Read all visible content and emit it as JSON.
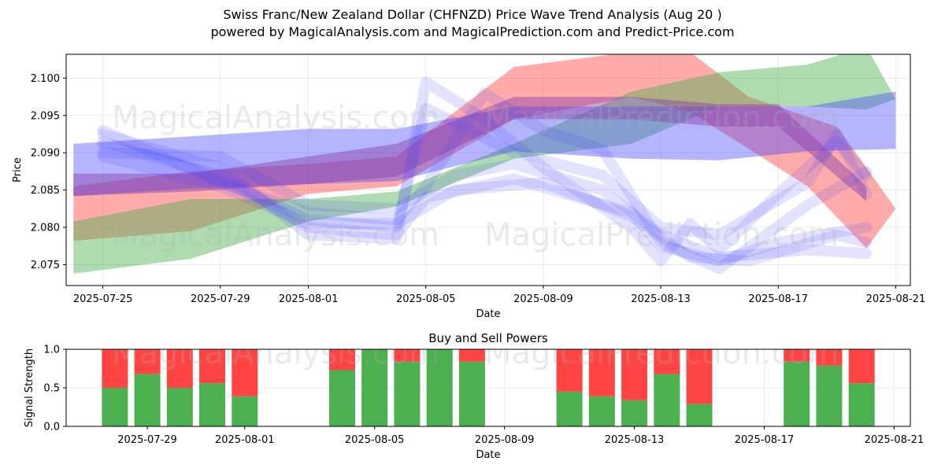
{
  "title_line1": "Swiss Franc/New Zealand Dollar (CHFNZD) Price Wave Trend Analysis (Aug 20 )",
  "title_line2": "powered by MagicalAnalysis.com and MagicalPrediction.com and Predict-Price.com",
  "watermarks": [
    "MagicalAnalysis.com",
    "MagicalPrediction.com"
  ],
  "colors": {
    "red": "#ff4444",
    "green": "#4caf50",
    "blue": "#4444ff",
    "grid": "#e6e6e6"
  },
  "chart_data": [
    {
      "type": "area",
      "name": "price-wave",
      "xlabel": "Date",
      "ylabel": "Price",
      "xlim": [
        "2025-07-23T18:00",
        "2025-08-21T12:00"
      ],
      "ylim": [
        2.0722,
        2.1032
      ],
      "x_ticks": [
        "2025-07-25",
        "2025-07-29",
        "2025-08-01",
        "2025-08-05",
        "2025-08-09",
        "2025-08-13",
        "2025-08-17",
        "2025-08-21"
      ],
      "y_ticks": [
        2.075,
        2.08,
        2.085,
        2.09,
        2.095,
        2.1
      ],
      "y_tick_labels": [
        "2.075",
        "2.080",
        "2.085",
        "2.090",
        "2.095",
        "2.100"
      ],
      "grid": true,
      "bands": [
        {
          "color": "#ff4444",
          "opacity": 0.45,
          "upper": [
            [
              "2025-07-24",
              2.0855
            ],
            [
              "2025-07-28",
              2.0875
            ],
            [
              "2025-08-01",
              2.0885
            ],
            [
              "2025-08-04",
              2.0895
            ],
            [
              "2025-08-08",
              2.1015
            ],
            [
              "2025-08-12",
              2.1035
            ],
            [
              "2025-08-14",
              2.1035
            ],
            [
              "2025-08-16",
              2.0975
            ],
            [
              "2025-08-19",
              2.0935
            ],
            [
              "2025-08-21",
              2.0825
            ]
          ],
          "lower": [
            [
              "2025-07-24",
              2.0782
            ],
            [
              "2025-07-28",
              2.0795
            ],
            [
              "2025-08-01",
              2.0845
            ],
            [
              "2025-08-04",
              2.0855
            ],
            [
              "2025-08-08",
              2.0945
            ],
            [
              "2025-08-12",
              2.0975
            ],
            [
              "2025-08-14",
              2.0955
            ],
            [
              "2025-08-16",
              2.0905
            ],
            [
              "2025-08-18",
              2.0855
            ],
            [
              "2025-08-20",
              2.0772
            ]
          ]
        },
        {
          "color": "#4caf50",
          "opacity": 0.45,
          "upper": [
            [
              "2025-07-24",
              2.0808
            ],
            [
              "2025-07-28",
              2.0838
            ],
            [
              "2025-08-01",
              2.0838
            ],
            [
              "2025-08-04",
              2.0848
            ],
            [
              "2025-08-08",
              2.0912
            ],
            [
              "2025-08-12",
              2.0982
            ],
            [
              "2025-08-15",
              2.1008
            ],
            [
              "2025-08-18",
              2.1018
            ],
            [
              "2025-08-20",
              2.1042
            ],
            [
              "2025-08-21",
              2.0972
            ]
          ],
          "lower": [
            [
              "2025-07-24",
              2.0738
            ],
            [
              "2025-07-28",
              2.0758
            ],
            [
              "2025-08-01",
              2.0808
            ],
            [
              "2025-08-04",
              2.0828
            ],
            [
              "2025-08-08",
              2.0892
            ],
            [
              "2025-08-12",
              2.0912
            ],
            [
              "2025-08-15",
              2.0962
            ],
            [
              "2025-08-18",
              2.0962
            ],
            [
              "2025-08-20",
              2.0958
            ]
          ]
        },
        {
          "color": "#4444ff",
          "opacity": 0.4,
          "upper": [
            [
              "2025-07-24",
              2.0912
            ],
            [
              "2025-07-28",
              2.0922
            ],
            [
              "2025-08-01",
              2.0932
            ],
            [
              "2025-08-04",
              2.0932
            ],
            [
              "2025-08-08",
              2.0962
            ],
            [
              "2025-08-12",
              2.0962
            ],
            [
              "2025-08-15",
              2.0962
            ],
            [
              "2025-08-18",
              2.0962
            ],
            [
              "2025-08-21",
              2.0982
            ]
          ],
          "lower": [
            [
              "2025-07-24",
              2.0842
            ],
            [
              "2025-07-28",
              2.0852
            ],
            [
              "2025-08-01",
              2.0858
            ],
            [
              "2025-08-04",
              2.0862
            ],
            [
              "2025-08-08",
              2.0902
            ],
            [
              "2025-08-12",
              2.0892
            ],
            [
              "2025-08-15",
              2.089
            ],
            [
              "2025-08-18",
              2.0902
            ],
            [
              "2025-08-21",
              2.0905
            ]
          ]
        },
        {
          "color": "#8a3fa8",
          "opacity": 0.45,
          "upper": [
            [
              "2025-07-24",
              2.0872
            ],
            [
              "2025-07-28",
              2.0872
            ],
            [
              "2025-08-01",
              2.0895
            ],
            [
              "2025-08-04",
              2.0912
            ],
            [
              "2025-08-08",
              2.0975
            ],
            [
              "2025-08-12",
              2.0975
            ],
            [
              "2025-08-15",
              2.0965
            ],
            [
              "2025-08-17",
              2.0965
            ],
            [
              "2025-08-20",
              2.0855
            ]
          ],
          "lower": [
            [
              "2025-07-24",
              2.0842
            ],
            [
              "2025-07-28",
              2.0848
            ],
            [
              "2025-08-01",
              2.0858
            ],
            [
              "2025-08-04",
              2.0868
            ],
            [
              "2025-08-08",
              2.0945
            ],
            [
              "2025-08-12",
              2.0945
            ],
            [
              "2025-08-15",
              2.0935
            ],
            [
              "2025-08-17",
              2.0935
            ],
            [
              "2025-08-20",
              2.0835
            ]
          ]
        }
      ],
      "waves": [
        {
          "color": "#4444ff",
          "opacity": 0.15,
          "width": 14,
          "points": [
            [
              "2025-07-25",
              2.0925
            ],
            [
              "2025-07-29",
              2.088
            ],
            [
              "2025-08-01",
              2.079
            ],
            [
              "2025-08-04",
              2.0785
            ],
            [
              "2025-08-05",
              2.0995
            ],
            [
              "2025-08-07",
              2.0945
            ],
            [
              "2025-08-09",
              2.088
            ],
            [
              "2025-08-12",
              2.08
            ],
            [
              "2025-08-13",
              2.0755
            ],
            [
              "2025-08-14",
              2.0805
            ],
            [
              "2025-08-15",
              2.077
            ],
            [
              "2025-08-17",
              2.0845
            ],
            [
              "2025-08-19",
              2.0915
            ],
            [
              "2025-08-20",
              2.087
            ]
          ]
        },
        {
          "color": "#4444ff",
          "opacity": 0.15,
          "width": 14,
          "points": [
            [
              "2025-07-25",
              2.091
            ],
            [
              "2025-07-29",
              2.087
            ],
            [
              "2025-08-01",
              2.08
            ],
            [
              "2025-08-04",
              2.079
            ],
            [
              "2025-08-05",
              2.084
            ],
            [
              "2025-08-08",
              2.0865
            ],
            [
              "2025-08-12",
              2.082
            ],
            [
              "2025-08-13",
              2.0775
            ],
            [
              "2025-08-15",
              2.0755
            ],
            [
              "2025-08-17",
              2.078
            ],
            [
              "2025-08-20",
              2.08
            ]
          ]
        },
        {
          "color": "#4444ff",
          "opacity": 0.15,
          "width": 14,
          "points": [
            [
              "2025-07-25",
              2.093
            ],
            [
              "2025-07-29",
              2.086
            ],
            [
              "2025-08-01",
              2.082
            ],
            [
              "2025-08-04",
              2.081
            ],
            [
              "2025-08-05",
              2.0855
            ],
            [
              "2025-08-07",
              2.098
            ],
            [
              "2025-08-09",
              2.093
            ],
            [
              "2025-08-11",
              2.0905
            ],
            [
              "2025-08-13",
              2.078
            ],
            [
              "2025-08-15",
              2.0745
            ],
            [
              "2025-08-18",
              2.083
            ],
            [
              "2025-08-20",
              2.0875
            ]
          ]
        },
        {
          "color": "#4444ff",
          "opacity": 0.15,
          "width": 14,
          "points": [
            [
              "2025-07-25",
              2.09
            ],
            [
              "2025-07-29",
              2.0895
            ],
            [
              "2025-08-01",
              2.083
            ],
            [
              "2025-08-04",
              2.0825
            ],
            [
              "2025-08-06",
              2.087
            ],
            [
              "2025-08-08",
              2.0885
            ],
            [
              "2025-08-11",
              2.085
            ],
            [
              "2025-08-13",
              2.079
            ],
            [
              "2025-08-15",
              2.076
            ],
            [
              "2025-08-18",
              2.077
            ],
            [
              "2025-08-20",
              2.0765
            ]
          ]
        },
        {
          "color": "#4444ff",
          "opacity": 0.15,
          "width": 14,
          "points": [
            [
              "2025-07-25",
              2.0915
            ],
            [
              "2025-07-28",
              2.088
            ],
            [
              "2025-08-01",
              2.081
            ],
            [
              "2025-08-04",
              2.08
            ],
            [
              "2025-08-05",
              2.096
            ],
            [
              "2025-08-08",
              2.09
            ],
            [
              "2025-08-11",
              2.087
            ],
            [
              "2025-08-13",
              2.08
            ],
            [
              "2025-08-15",
              2.079
            ],
            [
              "2025-08-18",
              2.086
            ],
            [
              "2025-08-19",
              2.0925
            ],
            [
              "2025-08-20",
              2.0845
            ]
          ]
        },
        {
          "color": "#4444ff",
          "opacity": 0.15,
          "width": 14,
          "points": [
            [
              "2025-07-25",
              2.0895
            ],
            [
              "2025-07-29",
              2.0855
            ],
            [
              "2025-08-01",
              2.0805
            ],
            [
              "2025-08-04",
              2.0805
            ],
            [
              "2025-08-06",
              2.085
            ],
            [
              "2025-08-09",
              2.086
            ],
            [
              "2025-08-12",
              2.0815
            ],
            [
              "2025-08-14",
              2.076
            ],
            [
              "2025-08-16",
              2.0755
            ],
            [
              "2025-08-19",
              2.079
            ],
            [
              "2025-08-20",
              2.078
            ]
          ]
        }
      ]
    },
    {
      "type": "bar",
      "name": "buy-sell-powers",
      "title": "Buy and Sell Powers",
      "xlabel": "Date",
      "ylabel": "Signal Strength",
      "xlim": [
        "2025-07-26T12:00",
        "2025-08-21T12:00"
      ],
      "ylim": [
        0,
        1
      ],
      "x_ticks": [
        "2025-07-29",
        "2025-08-01",
        "2025-08-05",
        "2025-08-09",
        "2025-08-13",
        "2025-08-17",
        "2025-08-21"
      ],
      "y_ticks": [
        0,
        0.5,
        1
      ],
      "y_tick_labels": [
        "0.0",
        "0.5",
        "1.0"
      ],
      "grid": true,
      "x": [
        "2025-07-28",
        "2025-07-29",
        "2025-07-30",
        "2025-07-31",
        "2025-08-01",
        "2025-08-04",
        "2025-08-05",
        "2025-08-06",
        "2025-08-07",
        "2025-08-08",
        "2025-08-11",
        "2025-08-12",
        "2025-08-13",
        "2025-08-14",
        "2025-08-15",
        "2025-08-18",
        "2025-08-19",
        "2025-08-20"
      ],
      "series": [
        {
          "color": "#4caf50",
          "values": [
            0.5,
            0.68,
            0.5,
            0.56,
            0.39,
            0.73,
            1.0,
            0.84,
            1.0,
            0.84,
            0.45,
            0.39,
            0.34,
            0.68,
            0.29,
            0.84,
            0.79,
            0.56
          ]
        },
        {
          "color": "#ff4444",
          "values": [
            0.5,
            0.32,
            0.5,
            0.44,
            0.61,
            0.27,
            0.0,
            0.16,
            0.0,
            0.16,
            0.55,
            0.61,
            0.66,
            0.32,
            0.71,
            0.16,
            0.21,
            0.44
          ]
        }
      ]
    }
  ]
}
